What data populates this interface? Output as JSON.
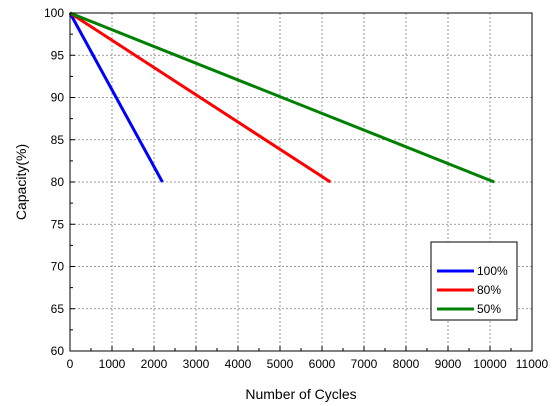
{
  "chart_data": {
    "type": "line",
    "title": "",
    "xlabel": "Number of Cycles",
    "ylabel": "Capacity(%)",
    "xlim": [
      0,
      11000
    ],
    "ylim": [
      60,
      100
    ],
    "x_ticks": [
      0,
      1000,
      2000,
      3000,
      4000,
      5000,
      6000,
      7000,
      8000,
      9000,
      10000,
      11000
    ],
    "x_tick_labels": [
      "0",
      "1000",
      "2000",
      "3000",
      "4000",
      "5000",
      "6000",
      "7000",
      "8000",
      "9000",
      "10000",
      "11000"
    ],
    "y_ticks": [
      60,
      65,
      70,
      75,
      80,
      85,
      90,
      95,
      100
    ],
    "y_tick_labels": [
      "60",
      "65",
      "70",
      "75",
      "80",
      "85",
      "90",
      "95",
      "100"
    ],
    "grid": true,
    "legend_position": "bottom-right",
    "series": [
      {
        "name": "100%",
        "color": "#0000ff",
        "points": [
          [
            0,
            100
          ],
          [
            2200,
            80
          ]
        ]
      },
      {
        "name": "80%",
        "color": "#ff0000",
        "points": [
          [
            0,
            100
          ],
          [
            6200,
            80
          ]
        ]
      },
      {
        "name": "50%",
        "color": "#008000",
        "points": [
          [
            0,
            100
          ],
          [
            10100,
            80
          ]
        ]
      }
    ]
  }
}
